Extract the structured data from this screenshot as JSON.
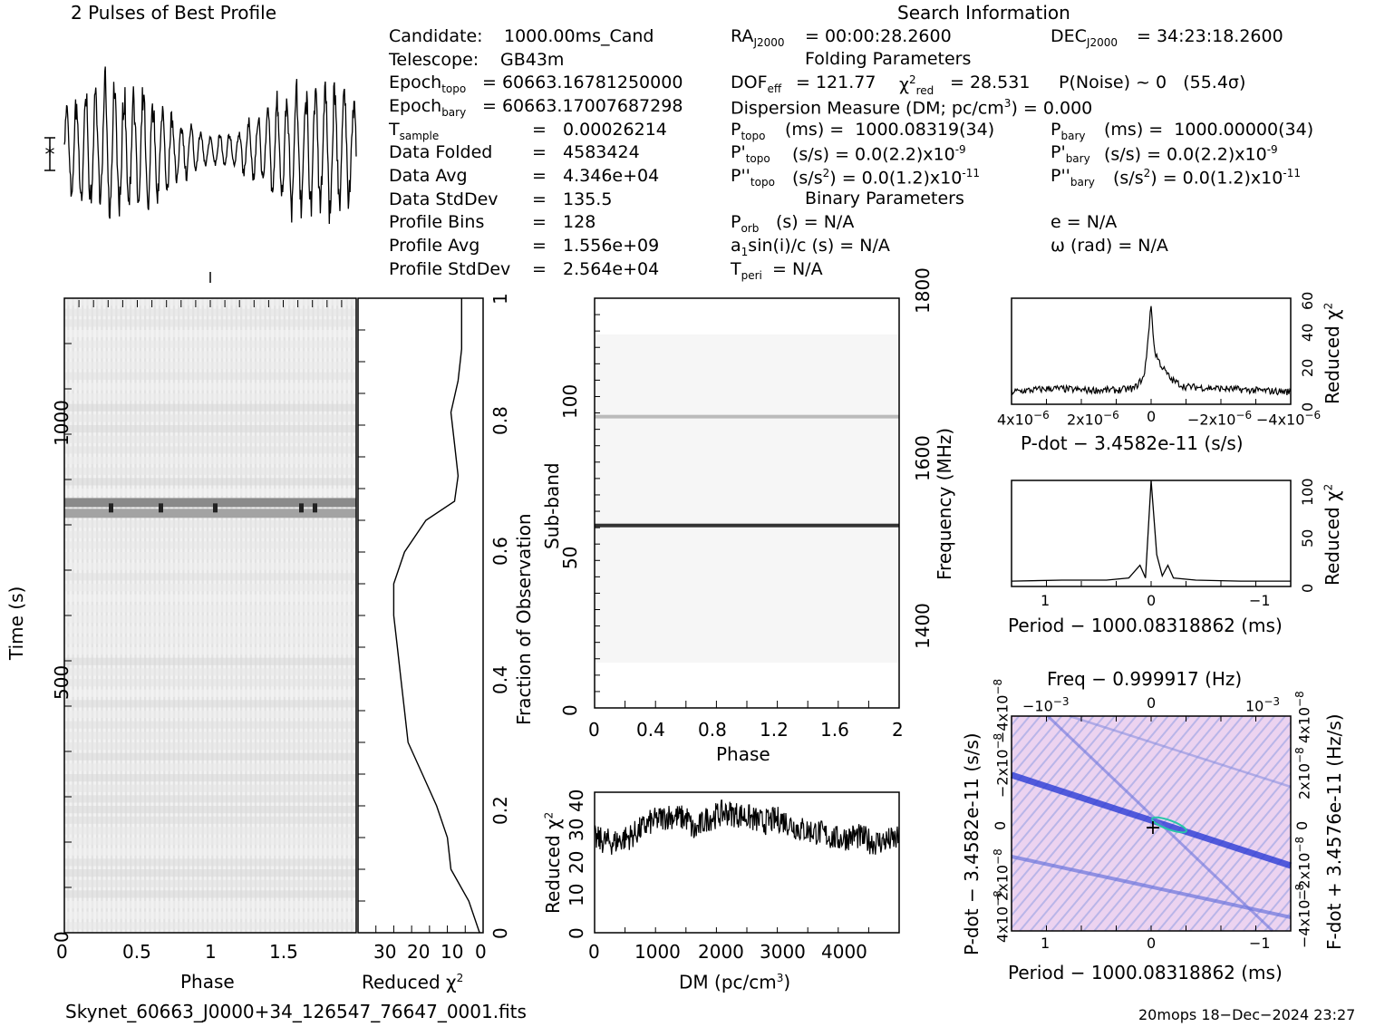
{
  "header": {
    "profile_title": "2 Pulses of Best Profile",
    "search_title": "Search Information",
    "folding_title": "Folding Parameters",
    "binary_title": "Binary Parameters"
  },
  "info": {
    "candidate_label": "Candidate:",
    "candidate": "1000.00ms_Cand",
    "telescope_label": "Telescope:",
    "telescope": "GB43m",
    "epoch_topo": "= 60663.16781250000",
    "epoch_bary": "= 60663.17007687298",
    "t_sample": "=   0.00026214",
    "data_folded_label": "Data Folded",
    "data_folded": "=   4583424",
    "data_avg_label": "Data Avg",
    "data_avg": "=   4.346e+04",
    "data_std_label": "Data StdDev",
    "data_std": "=   135.5",
    "profile_bins_label": "Profile Bins",
    "profile_bins": "=   128",
    "profile_avg_label": "Profile Avg",
    "profile_avg": "=   1.556e+09",
    "profile_std_label": "Profile StdDev",
    "profile_std": "=   2.564e+04"
  },
  "search": {
    "ra": "= 00:00:28.2600",
    "dec": "= 34:23:18.2600",
    "dof": "= 121.77",
    "chi2": "= 28.531",
    "pnoise": "P(Noise) ~ 0   (55.4σ)",
    "dm": "Dispersion Measure (DM; pc/cm",
    "dm_val": ") = 0.000",
    "ptopo": "(ms) =  1000.08319(34)",
    "pbary": "(ms) =  1000.00000(34)",
    "pdot_topo": "(s/s) = 0.0(2.2)x10",
    "pdot_bary": "(s/s) = 0.0(2.2)x10",
    "pdot_exp": "-9",
    "pddot_topo": "(s/s",
    "pddot_val": ") = 0.0(1.2)x10",
    "pddot_exp": "-11",
    "porb": "(s) = N/A",
    "ecc": "e = N/A",
    "a1sini": "a",
    "a1sini_rest": "sin(i)/c (s) = N/A",
    "omega": "ω (rad) = N/A",
    "tperi": "= N/A"
  },
  "axes": {
    "phase": "Phase",
    "time": "Time (s)",
    "reduced_chi2": "Reduced χ",
    "fraction_obs": "Fraction of Observation",
    "sub_band": "Sub-band",
    "frequency": "Frequency (MHz)",
    "dm": "DM (pc/cm",
    "pdot_x": "P-dot − 3.4582e-11 (s/s)",
    "period_x": "Period − 1000.08318862 (ms)",
    "freq_top": "Freq − 0.999917 (Hz)",
    "pdot_y": "P-dot − 3.4582e-11 (s/s)",
    "fdot_y": "F-dot + 3.4576e-11 (Hz/s)"
  },
  "ticks": {
    "phase_main": [
      "0",
      "0.5",
      "1",
      "1.5"
    ],
    "time": [
      "0",
      "500",
      "1000"
    ],
    "chi2_profile": [
      "30",
      "20",
      "10",
      "0"
    ],
    "fraction": [
      "0",
      "0.2",
      "0.4",
      "0.6",
      "0.8",
      "1"
    ],
    "subband_phase": [
      "0",
      "0.4",
      "0.8",
      "1.2",
      "1.6",
      "2"
    ],
    "subband": [
      "0",
      "50",
      "100"
    ],
    "freq": [
      "1400",
      "1600",
      "1800"
    ],
    "dm": [
      "0",
      "1000",
      "2000",
      "3000",
      "4000"
    ],
    "dm_chi2": [
      "0",
      "10",
      "20",
      "30",
      "40"
    ],
    "pdot_x": [
      "4x10",
      "2x10",
      "0",
      "−2x10",
      "−4x10"
    ],
    "pdot_x_exp": "−6",
    "pdot_chi2": [
      "0",
      "20",
      "40",
      "60"
    ],
    "period": [
      "1",
      "0",
      "−1"
    ],
    "period_chi2": [
      "0",
      "50",
      "100"
    ],
    "freq_top": [
      "−10",
      "0",
      "10"
    ],
    "freq_top_exp": [
      "−3",
      "",
      "−3"
    ],
    "pp_left": [
      "4x10",
      "2x10",
      "0",
      "−2x10",
      "−4x10"
    ],
    "pp_left_exp": "−8",
    "pp_right": [
      "−4x10",
      "−2x10",
      "0",
      "2x10",
      "4x10"
    ],
    "pp_right_exp": "−8"
  },
  "footer": {
    "filename": "Skynet_60663_J0000+34_126547_76647_0001.fits",
    "stamp": "20mops 18−Dec−2024 23:27"
  },
  "colors": {
    "ink": "#000000",
    "greyscale_dark": "#1a1a1a",
    "pp_blue": "#2b3bd6",
    "pp_bg": "#e8c8ee"
  },
  "chart_data": [
    {
      "type": "line",
      "panel": "best-profile",
      "title": "2 Pulses of Best Profile",
      "xlabel": "",
      "ylabel": "",
      "note": "Profile oscillates strongly with roughly 30 cycles across two pulses"
    },
    {
      "type": "heatmap",
      "panel": "time-vs-phase",
      "xlabel": "Phase",
      "ylabel": "Time (s)",
      "xlim": [
        0,
        2
      ],
      "ylim": [
        0,
        1180
      ],
      "bright_rows_s": [
        780,
        800
      ]
    },
    {
      "type": "line",
      "panel": "chi2-vs-time",
      "xlabel": "Reduced χ2",
      "ylabel": "Fraction of Observation",
      "xlim": [
        35,
        0
      ],
      "ylim": [
        0,
        1
      ],
      "fraction": [
        0,
        0.05,
        0.1,
        0.15,
        0.2,
        0.25,
        0.3,
        0.35,
        0.4,
        0.45,
        0.5,
        0.55,
        0.6,
        0.65,
        0.68,
        0.72,
        0.77,
        0.82,
        0.87,
        0.92,
        0.97,
        1.0
      ],
      "chi2": [
        1,
        4,
        9,
        10,
        13,
        17,
        21,
        22,
        23,
        24,
        25,
        25,
        22,
        16,
        8,
        7,
        8,
        9,
        7,
        6,
        6,
        6
      ]
    },
    {
      "type": "heatmap",
      "panel": "subband-vs-phase",
      "xlabel": "Phase",
      "ylabel": "Sub-band",
      "xlim": [
        0,
        2
      ],
      "ylim": [
        0,
        128
      ],
      "bright_subbands": [
        57,
        91
      ]
    },
    {
      "type": "line",
      "panel": "chi2-vs-dm",
      "xlabel": "DM (pc/cm3)",
      "ylabel": "Reduced χ2",
      "xlim": [
        0,
        4900
      ],
      "ylim": [
        0,
        42
      ],
      "x": [
        0,
        300,
        600,
        900,
        1200,
        1500,
        1600,
        1800,
        2100,
        2400,
        2700,
        3000,
        3300,
        3600,
        3900,
        4200,
        4500,
        4900
      ],
      "y": [
        28,
        27,
        29,
        33,
        35,
        34,
        30,
        34,
        36,
        35,
        33,
        34,
        31,
        30,
        28,
        29,
        27,
        28
      ]
    },
    {
      "type": "line",
      "panel": "chi2-vs-pdot",
      "xlabel": "P-dot − 3.4582e-11 (s/s)",
      "ylabel": "Reduced χ2",
      "xlim": [
        4.2e-06,
        -4.2e-06
      ],
      "ylim": [
        0,
        60
      ],
      "x": [
        4.2e-06,
        3e-06,
        2e-06,
        1e-06,
        5e-07,
        2e-07,
        0,
        -1e-07,
        -3e-07,
        -6e-07,
        -1e-06,
        -2e-06,
        -3e-06,
        -4.2e-06
      ],
      "y": [
        7,
        9,
        8,
        8,
        9,
        16,
        56,
        30,
        22,
        14,
        10,
        9,
        8,
        7
      ]
    },
    {
      "type": "line",
      "panel": "chi2-vs-period",
      "xlabel": "Period − 1000.08318862 (ms)",
      "ylabel": "Reduced χ2",
      "xlim": [
        1.25,
        -1.25
      ],
      "ylim": [
        0,
        100
      ],
      "x": [
        1.25,
        0.8,
        0.4,
        0.2,
        0.1,
        0.05,
        0,
        -0.05,
        -0.1,
        -0.15,
        -0.2,
        -0.4,
        -0.8,
        -1.25
      ],
      "y": [
        5,
        6,
        6,
        8,
        20,
        8,
        100,
        30,
        10,
        20,
        8,
        6,
        5,
        5
      ]
    },
    {
      "type": "heatmap",
      "panel": "period-pdot",
      "xlabel": "Period − 1000.08318862 (ms)",
      "ylabel": "P-dot − 3.4582e-11 (s/s)",
      "xlim": [
        1.25,
        -1.25
      ],
      "ylim": [
        4.2e-08,
        -4.2e-08
      ]
    }
  ]
}
